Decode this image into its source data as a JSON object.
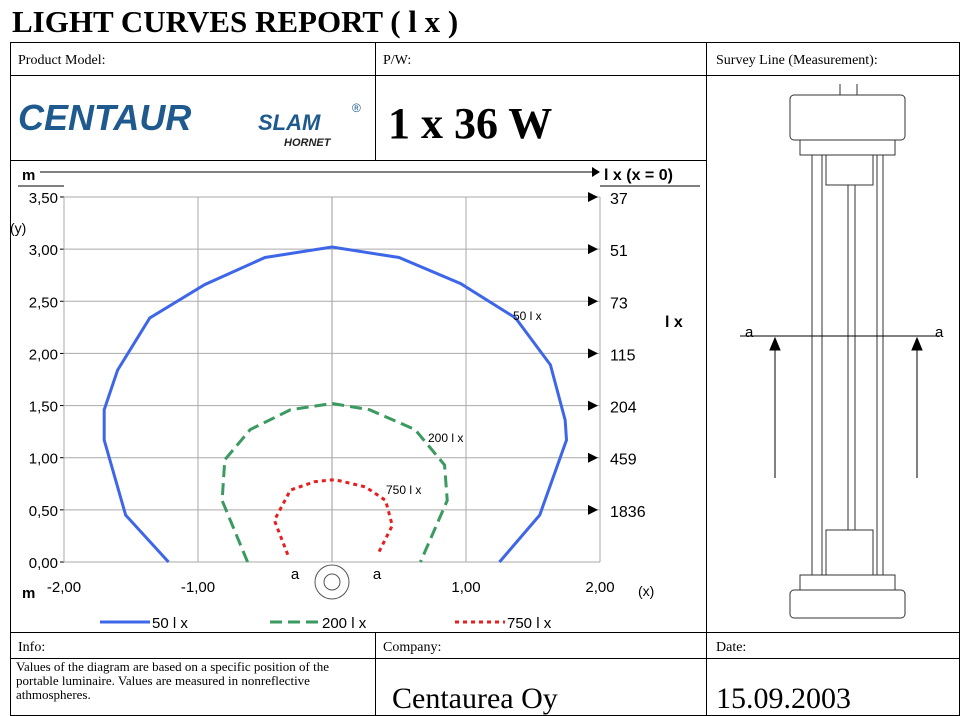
{
  "title": "LIGHT CURVES REPORT ( l x )",
  "product": {
    "label": "Product Model:",
    "logo": {
      "brand": "CENTAUR",
      "sub": "SLAM",
      "reg": "®",
      "model": "HORNET"
    }
  },
  "power": {
    "label": "P/W:",
    "value": "1 x 36 W"
  },
  "survey": {
    "label": "Survey Line (Measurement):",
    "marker": "a"
  },
  "info": {
    "label": "Info:",
    "text": "Values of the diagram are based on a specific position of the portable luminaire. Values are measured in nonreflective athmospheres."
  },
  "company": {
    "label": "Company:",
    "value": "Centaurea Oy"
  },
  "date": {
    "label": "Date:",
    "value": "15.09.2003"
  },
  "chart_data": {
    "type": "line",
    "y_unit": "m",
    "y_label": "(y)",
    "x_unit": "m",
    "x_label": "(x)",
    "marker": "a",
    "xlim": [
      -2,
      2
    ],
    "ylim": [
      0,
      3.5
    ],
    "xticks": [
      {
        "value": -2,
        "label": "-2,00"
      },
      {
        "value": -1,
        "label": "-1,00"
      },
      {
        "value": 1,
        "label": "1,00"
      },
      {
        "value": 2,
        "label": "2,00"
      }
    ],
    "yticks": [
      {
        "value": 0,
        "label": "0,00"
      },
      {
        "value": 0.5,
        "label": "0,50"
      },
      {
        "value": 1,
        "label": "1,00"
      },
      {
        "value": 1.5,
        "label": "1,50"
      },
      {
        "value": 2,
        "label": "2,00"
      },
      {
        "value": 2.5,
        "label": "2,50"
      },
      {
        "value": 3,
        "label": "3,00"
      },
      {
        "value": 3.5,
        "label": "3,50"
      }
    ],
    "grid": true,
    "series": [
      {
        "name": "50 l x",
        "color": "#3d66e8",
        "style": "solid",
        "x": [
          -1.22,
          -1.54,
          -1.7,
          -1.7,
          -1.6,
          -1.36,
          -0.95,
          -0.5,
          0,
          0.5,
          0.96,
          1.37,
          1.63,
          1.74,
          1.75,
          1.55,
          1.25
        ],
        "values": [
          0,
          0.45,
          1.17,
          1.46,
          1.84,
          2.34,
          2.66,
          2.92,
          3.02,
          2.92,
          2.67,
          2.34,
          1.89,
          1.36,
          1.17,
          0.45,
          0
        ]
      },
      {
        "name": "200 l x",
        "color": "#3a9a5f",
        "style": "dashed",
        "x": [
          -0.63,
          -0.82,
          -0.8,
          -0.61,
          -0.31,
          0,
          0.28,
          0.62,
          0.84,
          0.86,
          0.66
        ],
        "values": [
          0,
          0.59,
          0.98,
          1.27,
          1.46,
          1.52,
          1.46,
          1.27,
          0.93,
          0.59,
          0
        ]
      },
      {
        "name": "750 l x",
        "color": "#e81e1e",
        "style": "dotted",
        "x": [
          -0.33,
          -0.43,
          -0.31,
          -0.13,
          0.02,
          0.25,
          0.4,
          0.45,
          0.34
        ],
        "values": [
          0.07,
          0.4,
          0.69,
          0.77,
          0.79,
          0.72,
          0.59,
          0.35,
          0.07
        ]
      }
    ],
    "right_scale": {
      "title": "l x (x = 0)",
      "label": "l x",
      "heights": [
        3.5,
        3,
        2.5,
        2,
        1.5,
        1,
        0.5
      ],
      "values": [
        37,
        51,
        73,
        115,
        204,
        459,
        1836
      ]
    }
  }
}
